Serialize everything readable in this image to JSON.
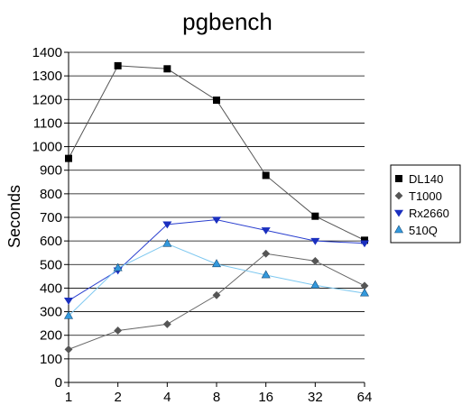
{
  "chart_data": {
    "type": "line",
    "title": "pgbench",
    "xlabel": "",
    "ylabel": "Seconds",
    "categories": [
      "1",
      "2",
      "4",
      "8",
      "16",
      "32",
      "64"
    ],
    "ylim": [
      0,
      1400
    ],
    "ytick_step": 100,
    "grid": "horizontal",
    "legend": "right",
    "series": [
      {
        "name": "DL140",
        "values": [
          950,
          1343,
          1330,
          1197,
          878,
          705,
          603
        ],
        "color": "#000000",
        "line": "#555555",
        "marker": "square"
      },
      {
        "name": "T1000",
        "values": [
          140,
          220,
          247,
          370,
          546,
          515,
          410
        ],
        "color": "#555555",
        "line": "#666666",
        "marker": "diamond"
      },
      {
        "name": "Rx2660",
        "values": [
          347,
          475,
          670,
          690,
          645,
          600,
          590
        ],
        "color": "#1a2fbf",
        "line": "#2a3fcf",
        "marker": "triangle-down"
      },
      {
        "name": "510Q",
        "values": [
          282,
          485,
          588,
          502,
          455,
          412,
          378
        ],
        "color": "#3399dd",
        "line": "#7ec8f0",
        "marker": "triangle-up"
      }
    ]
  }
}
